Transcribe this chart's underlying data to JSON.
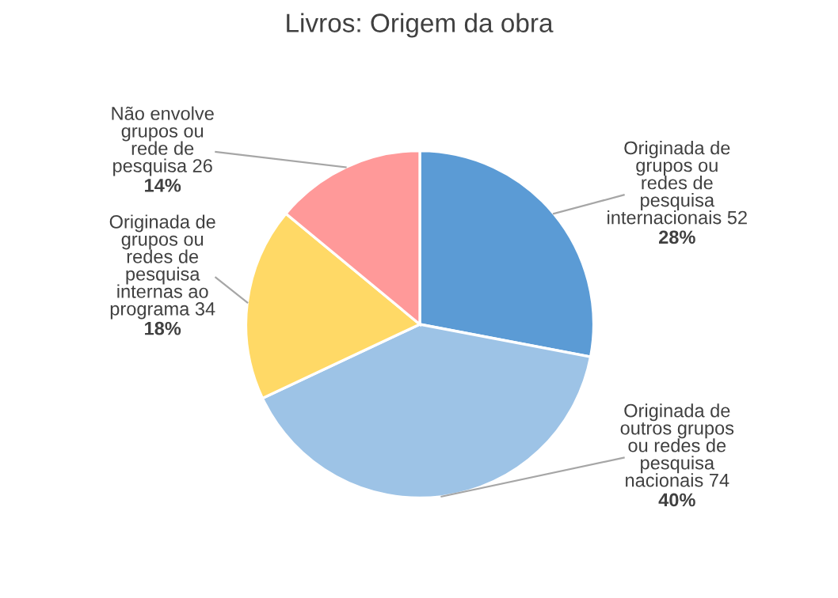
{
  "chart_data": {
    "type": "pie",
    "title": "Livros: Origem da obra",
    "categories": [
      "Originada de\ngrupos ou\nredes de\npesquisa\ninternacionais 52",
      "Originada de\noutros grupos\nou redes de\npesquisa\nnacionais 74",
      "Originada de\ngrupos ou\nredes de\npesquisa\ninternas ao\nprograma 34",
      "Não envolve\ngrupos ou\nrede de\npesquisa 26"
    ],
    "values": [
      28,
      40,
      18,
      14
    ],
    "value_labels": [
      "28%",
      "40%",
      "18%",
      "14%"
    ],
    "colors": [
      "#5b9bd5",
      "#9dc3e6",
      "#ffd966",
      "#ff9999"
    ],
    "legend": false
  }
}
